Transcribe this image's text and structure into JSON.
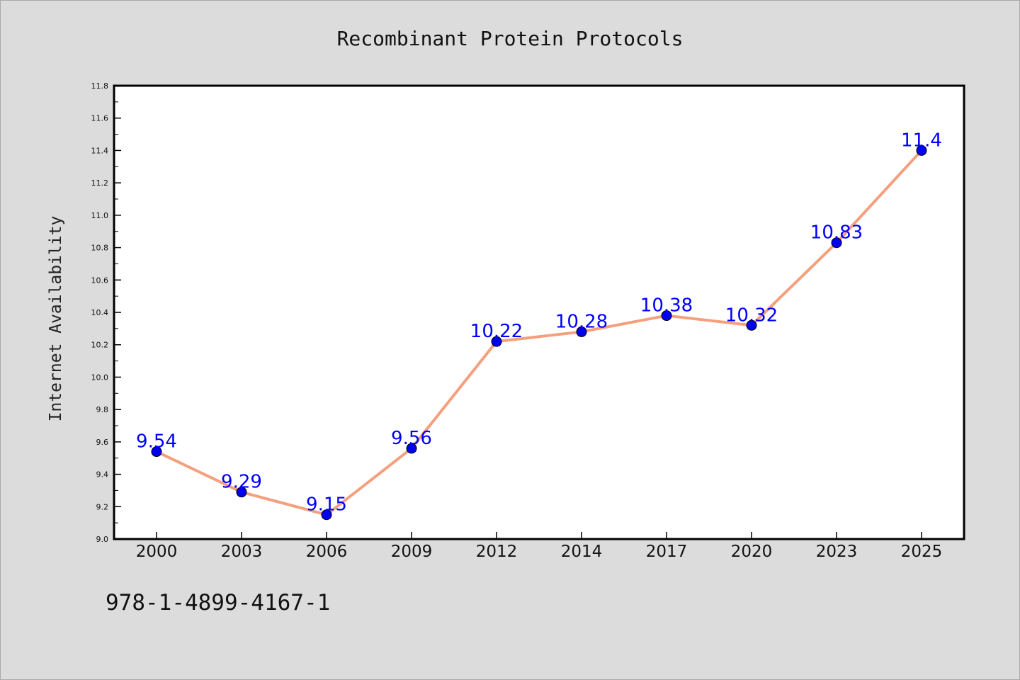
{
  "chart_data": {
    "type": "line",
    "title": "Recombinant Protein Protocols",
    "xlabel": "",
    "ylabel": "Internet Availability",
    "categories": [
      "2000",
      "2003",
      "2006",
      "2009",
      "2012",
      "2014",
      "2017",
      "2020",
      "2023",
      "2025"
    ],
    "series": [
      {
        "values": [
          9.54,
          9.29,
          9.15,
          9.56,
          10.22,
          10.28,
          10.38,
          10.32,
          10.83,
          11.4
        ]
      }
    ],
    "data_labels": [
      "9.54",
      "9.29",
      "9.15",
      "9.56",
      "10.22",
      "10.28",
      "10.38",
      "10.32",
      "10.83",
      "11.4"
    ],
    "ylim": [
      9.0,
      11.8
    ],
    "yticks": [
      "9.0",
      "9.2",
      "9.4",
      "9.6",
      "9.8",
      "10.0",
      "10.2",
      "10.4",
      "10.6",
      "10.8",
      "11.0",
      "11.2",
      "11.4",
      "11.6",
      "11.8"
    ],
    "grid": false,
    "legend": "none",
    "colors": {
      "line": "#f4a07e",
      "marker": "#0000ee",
      "label": "#0000ff",
      "background": "#dcdcdc",
      "plot_background": "#ffffff"
    }
  },
  "footer": {
    "code": "978-1-4899-4167-1"
  }
}
